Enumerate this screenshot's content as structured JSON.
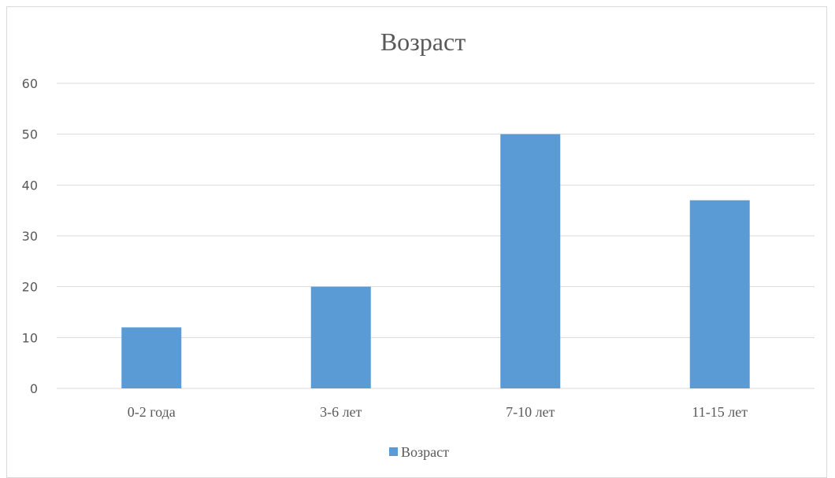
{
  "chart_data": {
    "type": "bar",
    "title": "Возраст",
    "categories": [
      "0-2 года",
      "3-6 лет",
      "7-10 лет",
      "11-15 лет"
    ],
    "series": [
      {
        "name": "Возраст",
        "values": [
          12,
          20,
          50,
          37
        ]
      }
    ],
    "yticks": [
      "0",
      "10",
      "20",
      "30",
      "40",
      "50",
      "60"
    ],
    "ylim": [
      0,
      60
    ],
    "grid": true,
    "legend": "bottom",
    "colors": {
      "bar": "#5b9bd5",
      "grid": "#d9d9d9",
      "text": "#595959"
    }
  }
}
